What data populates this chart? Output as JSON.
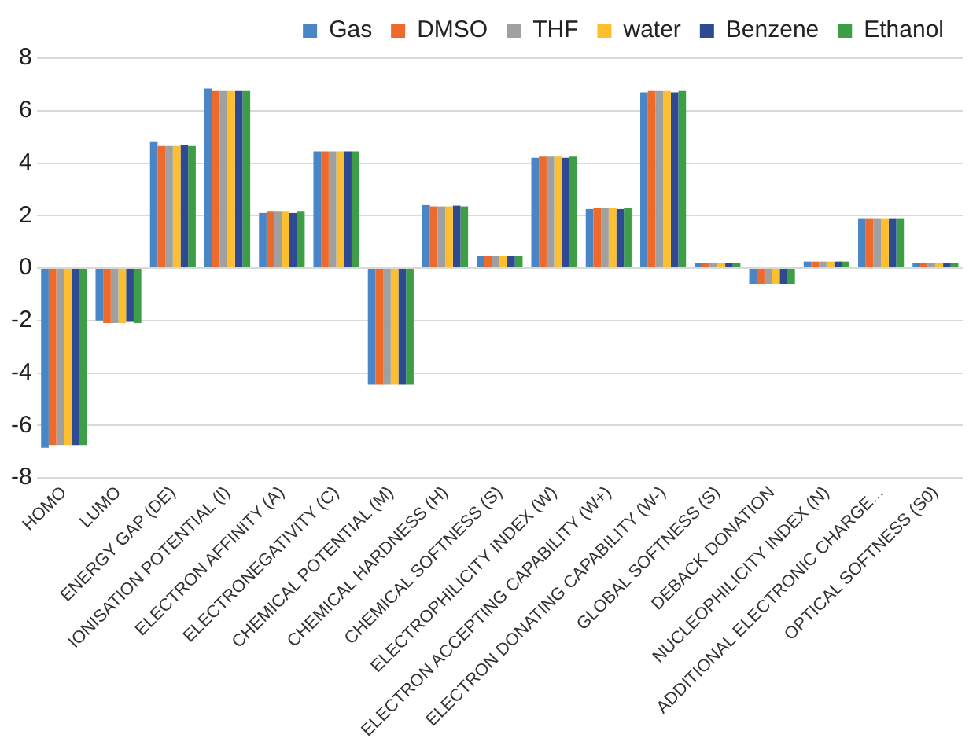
{
  "chart_data": {
    "type": "bar",
    "categories": [
      "HOMO",
      "LUMO",
      "ENERGY GAP (DE)",
      "IONISATION POTENTIAL (I)",
      "ELECTRON AFFINITY (A)",
      "ELECTRONEGATIVITY (C)",
      "CHEMICAL POTENTIAL (M)",
      "CHEMICAL HARDNESS (H)",
      "CHEMICAL SOFTNESS (S)",
      "ELECTROPHILICITY INDEX (W)",
      "ELECTRON ACCEPTING CAPABILITY (W+)",
      "ELECTRON DONATING CAPABILITY (W-)",
      "GLOBAL SOFTNESS (S)",
      "DEBACK DONATION",
      "NUCLEOPHILICITY INDEX (N)",
      "ADDITIONAL ELECTRONIC CHARGE...",
      "OPTICAL SOFTNESS (S0)"
    ],
    "series": [
      {
        "name": "Gas",
        "color": "#4a86c6",
        "values": [
          -6.85,
          -2.0,
          4.8,
          6.85,
          2.1,
          4.45,
          -4.45,
          2.4,
          0.45,
          4.2,
          2.25,
          6.7,
          0.2,
          -0.6,
          0.25,
          1.9,
          0.2
        ]
      },
      {
        "name": "DMSO",
        "color": "#ee6a2c",
        "values": [
          -6.75,
          -2.1,
          4.65,
          6.75,
          2.15,
          4.45,
          -4.45,
          2.35,
          0.45,
          4.25,
          2.3,
          6.75,
          0.2,
          -0.6,
          0.25,
          1.9,
          0.2
        ]
      },
      {
        "name": "THF",
        "color": "#a0a0a0",
        "values": [
          -6.75,
          -2.1,
          4.65,
          6.75,
          2.15,
          4.45,
          -4.45,
          2.35,
          0.45,
          4.25,
          2.3,
          6.75,
          0.2,
          -0.6,
          0.25,
          1.9,
          0.2
        ]
      },
      {
        "name": "water",
        "color": "#fdbf2d",
        "values": [
          -6.75,
          -2.1,
          4.65,
          6.75,
          2.15,
          4.45,
          -4.45,
          2.35,
          0.45,
          4.25,
          2.3,
          6.75,
          0.2,
          -0.6,
          0.25,
          1.9,
          0.2
        ]
      },
      {
        "name": "Benzene",
        "color": "#2e4a93",
        "values": [
          -6.75,
          -2.05,
          4.7,
          6.75,
          2.1,
          4.45,
          -4.45,
          2.38,
          0.45,
          4.2,
          2.25,
          6.7,
          0.2,
          -0.6,
          0.25,
          1.9,
          0.2
        ]
      },
      {
        "name": "Ethanol",
        "color": "#3e9e45",
        "values": [
          -6.75,
          -2.1,
          4.65,
          6.75,
          2.15,
          4.45,
          -4.45,
          2.35,
          0.45,
          4.25,
          2.3,
          6.75,
          0.2,
          -0.6,
          0.25,
          1.9,
          0.2
        ]
      }
    ],
    "ylim": [
      -8,
      8
    ],
    "yticks": [
      -8,
      -6,
      -4,
      -2,
      0,
      2,
      4,
      6,
      8
    ],
    "grid": "y",
    "legend": "top right"
  }
}
